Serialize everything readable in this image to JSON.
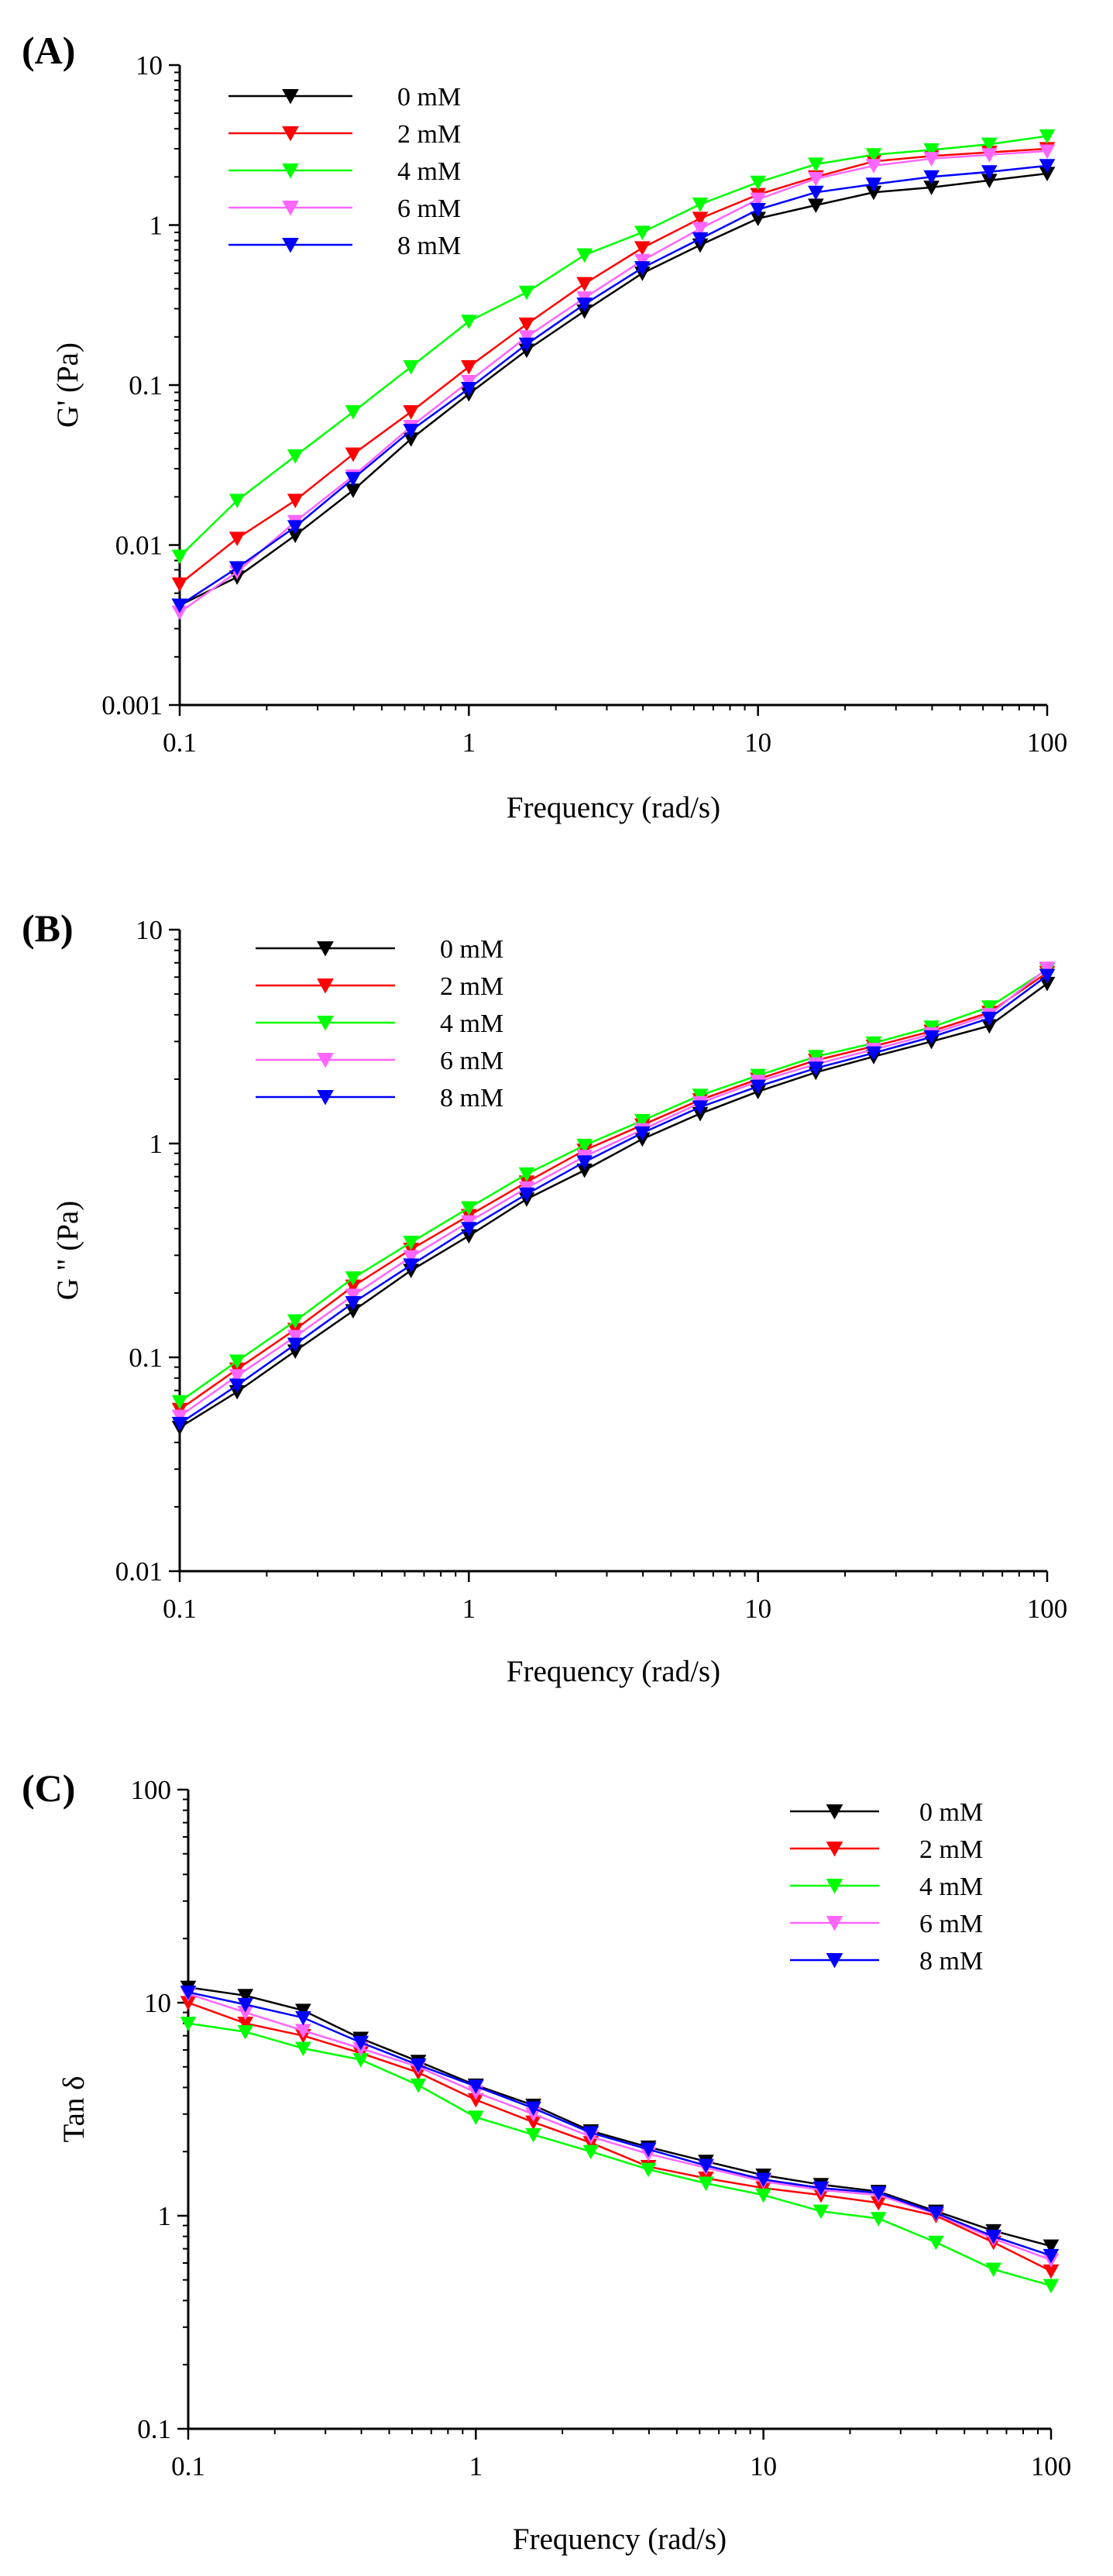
{
  "chart_data": [
    {
      "type": "line",
      "panel_label": "(A)",
      "yscale": "log",
      "xscale": "log",
      "xlabel": "Frequency (rad/s)",
      "ylabel": "G' (Pa)",
      "xlim": [
        0.1,
        100
      ],
      "ylim": [
        0.001,
        10
      ],
      "x_ticks": [
        0.1,
        1,
        10,
        100
      ],
      "x_tick_labels": [
        "0.1",
        "1",
        "10",
        "100"
      ],
      "y_ticks": [
        0.001,
        0.01,
        0.1,
        1,
        10
      ],
      "y_tick_labels": [
        "0.001",
        "0.01",
        "0.1",
        "1",
        "10"
      ],
      "legend_position": "top-left",
      "x": [
        0.1,
        0.158,
        0.251,
        0.398,
        0.631,
        1,
        1.585,
        2.512,
        3.981,
        6.31,
        10,
        15.85,
        25.12,
        39.81,
        63.1,
        100
      ],
      "series": [
        {
          "name": "0 mM",
          "color": "#000000",
          "values": [
            0.0042,
            0.0063,
            0.0115,
            0.022,
            0.046,
            0.088,
            0.165,
            0.29,
            0.5,
            0.75,
            1.1,
            1.33,
            1.6,
            1.72,
            1.9,
            2.1
          ]
        },
        {
          "name": "2 mM",
          "color": "#ff0000",
          "values": [
            0.0057,
            0.011,
            0.019,
            0.037,
            0.068,
            0.13,
            0.24,
            0.43,
            0.72,
            1.1,
            1.55,
            2.0,
            2.5,
            2.7,
            2.85,
            3.0
          ]
        },
        {
          "name": "4 mM",
          "color": "#00ff00",
          "values": [
            0.0085,
            0.019,
            0.036,
            0.068,
            0.13,
            0.25,
            0.38,
            0.65,
            0.9,
            1.35,
            1.85,
            2.4,
            2.75,
            2.95,
            3.2,
            3.6
          ]
        },
        {
          "name": "6 mM",
          "color": "#ff66ff",
          "values": [
            0.0038,
            0.0068,
            0.014,
            0.027,
            0.055,
            0.105,
            0.2,
            0.35,
            0.6,
            0.95,
            1.45,
            1.95,
            2.35,
            2.6,
            2.75,
            2.9
          ]
        },
        {
          "name": "8 mM",
          "color": "#0000ff",
          "values": [
            0.0042,
            0.0072,
            0.013,
            0.026,
            0.052,
            0.095,
            0.18,
            0.32,
            0.54,
            0.82,
            1.25,
            1.6,
            1.8,
            2.0,
            2.15,
            2.35
          ]
        }
      ]
    },
    {
      "type": "line",
      "panel_label": "(B)",
      "yscale": "log",
      "xscale": "log",
      "xlabel": "Frequency (rad/s)",
      "ylabel": "G \" (Pa)",
      "xlim": [
        0.1,
        100
      ],
      "ylim": [
        0.01,
        10
      ],
      "x_ticks": [
        0.1,
        1,
        10,
        100
      ],
      "x_tick_labels": [
        "0.1",
        "1",
        "10",
        "100"
      ],
      "y_ticks": [
        0.01,
        0.1,
        1,
        10
      ],
      "y_tick_labels": [
        "0.01",
        "0.1",
        "1",
        "10"
      ],
      "legend_position": "top-left",
      "x": [
        0.1,
        0.158,
        0.251,
        0.398,
        0.631,
        1,
        1.585,
        2.512,
        3.981,
        6.31,
        10,
        15.85,
        25.12,
        39.81,
        63.1,
        100
      ],
      "series": [
        {
          "name": "0 mM",
          "color": "#000000",
          "values": [
            0.047,
            0.069,
            0.107,
            0.165,
            0.255,
            0.37,
            0.55,
            0.75,
            1.05,
            1.38,
            1.75,
            2.15,
            2.55,
            3.0,
            3.55,
            5.6
          ]
        },
        {
          "name": "2 mM",
          "color": "#ff0000",
          "values": [
            0.057,
            0.088,
            0.135,
            0.215,
            0.32,
            0.46,
            0.66,
            0.93,
            1.22,
            1.6,
            2.0,
            2.45,
            2.85,
            3.35,
            4.1,
            6.3
          ]
        },
        {
          "name": "4 mM",
          "color": "#00ff00",
          "values": [
            0.062,
            0.096,
            0.148,
            0.235,
            0.345,
            0.5,
            0.72,
            0.98,
            1.28,
            1.68,
            2.08,
            2.55,
            2.95,
            3.5,
            4.35,
            6.5
          ]
        },
        {
          "name": "6 mM",
          "color": "#ff66ff",
          "values": [
            0.053,
            0.082,
            0.125,
            0.195,
            0.295,
            0.43,
            0.62,
            0.87,
            1.16,
            1.55,
            1.95,
            2.35,
            2.75,
            3.25,
            4.0,
            6.6
          ]
        },
        {
          "name": "8 mM",
          "color": "#0000ff",
          "values": [
            0.049,
            0.074,
            0.115,
            0.18,
            0.27,
            0.4,
            0.58,
            0.82,
            1.12,
            1.48,
            1.85,
            2.25,
            2.65,
            3.15,
            3.85,
            6.1
          ]
        }
      ]
    },
    {
      "type": "line",
      "panel_label": "(C)",
      "yscale": "log",
      "xscale": "log",
      "xlabel": "Frequency (rad/s)",
      "ylabel": "Tan δ",
      "xlim": [
        0.1,
        100
      ],
      "ylim": [
        0.1,
        100
      ],
      "x_ticks": [
        0.1,
        1,
        10,
        100
      ],
      "x_tick_labels": [
        "0.1",
        "1",
        "10",
        "100"
      ],
      "y_ticks": [
        0.1,
        1,
        10,
        100
      ],
      "y_tick_labels": [
        "0.1",
        "1",
        "10",
        "100"
      ],
      "legend_position": "top-right",
      "x": [
        0.1,
        0.158,
        0.251,
        0.398,
        0.631,
        1,
        1.585,
        2.512,
        3.981,
        6.31,
        10,
        15.85,
        25.12,
        39.81,
        63.1,
        100
      ],
      "series": [
        {
          "name": "0 mM",
          "color": "#000000",
          "values": [
            11.8,
            10.8,
            9.2,
            6.8,
            5.3,
            4.1,
            3.3,
            2.5,
            2.1,
            1.8,
            1.55,
            1.4,
            1.3,
            1.05,
            0.85,
            0.72
          ]
        },
        {
          "name": "2 mM",
          "color": "#ff0000",
          "values": [
            10.0,
            8.0,
            7.0,
            5.8,
            4.7,
            3.5,
            2.75,
            2.2,
            1.7,
            1.5,
            1.35,
            1.25,
            1.15,
            1.0,
            0.75,
            0.55
          ]
        },
        {
          "name": "4 mM",
          "color": "#00ff00",
          "values": [
            8.0,
            7.3,
            6.1,
            5.4,
            4.1,
            2.9,
            2.4,
            2.0,
            1.65,
            1.42,
            1.25,
            1.05,
            0.97,
            0.75,
            0.56,
            0.47
          ]
        },
        {
          "name": "6 mM",
          "color": "#ff66ff",
          "values": [
            11.0,
            9.0,
            7.4,
            6.1,
            5.0,
            3.8,
            3.0,
            2.35,
            1.95,
            1.68,
            1.45,
            1.32,
            1.25,
            1.02,
            0.78,
            0.62
          ]
        },
        {
          "name": "8 mM",
          "color": "#0000ff",
          "values": [
            11.2,
            9.8,
            8.5,
            6.5,
            5.1,
            4.05,
            3.2,
            2.45,
            2.05,
            1.72,
            1.48,
            1.35,
            1.28,
            1.03,
            0.8,
            0.65
          ]
        }
      ]
    }
  ]
}
